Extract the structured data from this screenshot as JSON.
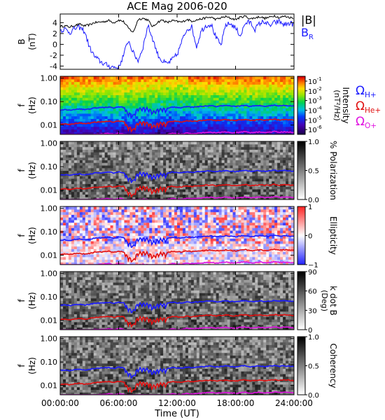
{
  "chart_data": {
    "title": "ACE Mag 2006-020",
    "xlabel": "Time (UT)",
    "x_ticks": [
      "00:00:00",
      "06:00:00",
      "12:00:00",
      "18:00:00",
      "24:00:00"
    ],
    "xlim_hours": [
      0,
      24
    ],
    "panels": [
      {
        "type": "line",
        "ylabel": [
          "B",
          "(nT)"
        ],
        "ylim": [
          -4.6,
          5.6
        ],
        "y_ticks": [
          "4",
          "2",
          "0",
          "-2",
          "-4"
        ],
        "y_tick_values": [
          4,
          2,
          0,
          -2,
          -4
        ],
        "legend": [
          {
            "label": "|B|",
            "color": "#000000"
          },
          {
            "label": "B",
            "sub": "R",
            "color": "#1a1aff"
          }
        ],
        "series": [
          {
            "name": "|B|",
            "color": "#000000",
            "x": [
              0,
              0.5,
              1,
              1.5,
              2,
              2.5,
              3,
              3.5,
              4,
              4.5,
              5,
              5.5,
              6,
              6.5,
              7,
              7.5,
              8,
              8.5,
              9,
              9.5,
              10,
              10.5,
              11,
              11.5,
              12,
              12.5,
              13,
              13.5,
              14,
              14.5,
              15,
              15.5,
              16,
              16.5,
              17,
              17.5,
              18,
              18.5,
              19,
              19.5,
              20,
              20.5,
              21,
              21.5,
              22,
              22.5,
              23,
              23.5,
              24
            ],
            "y": [
              3.3,
              3.4,
              3.2,
              3.5,
              3.7,
              3.4,
              3.6,
              4.0,
              4.1,
              4.2,
              4.4,
              4.0,
              4.5,
              4.2,
              3.0,
              2.2,
              4.6,
              4.8,
              4.5,
              3.2,
              4.1,
              4.5,
              4.0,
              4.4,
              4.2,
              4.1,
              4.6,
              4.3,
              4.5,
              4.7,
              4.9,
              5.0,
              4.6,
              4.9,
              5.1,
              4.8,
              4.6,
              5.0,
              5.2,
              4.7,
              4.9,
              5.1,
              4.8,
              5.0,
              5.3,
              4.9,
              5.2,
              5.0,
              4.8
            ]
          },
          {
            "name": "B_R",
            "color": "#1a1aff",
            "x": [
              0,
              0.5,
              1,
              1.5,
              2,
              2.5,
              3,
              3.5,
              4,
              4.5,
              5,
              5.5,
              6,
              6.5,
              7,
              7.5,
              8,
              8.5,
              9,
              9.5,
              10,
              10.5,
              11,
              11.5,
              12,
              12.5,
              13,
              13.5,
              14,
              14.5,
              15,
              15.5,
              16,
              16.5,
              17,
              17.5,
              18,
              18.5,
              19,
              19.5,
              20,
              20.5,
              21,
              21.5,
              22,
              22.5,
              23,
              23.5,
              24
            ],
            "y": [
              2.6,
              2.8,
              2.2,
              2.9,
              3.1,
              2.4,
              -0.5,
              -2.2,
              -3.0,
              -3.6,
              -4.0,
              -4.2,
              -4.3,
              -2.0,
              0.8,
              -1.6,
              -3.0,
              -0.5,
              3.5,
              1.0,
              -1.8,
              -3.2,
              -3.6,
              -2.8,
              -1.9,
              0.6,
              2.8,
              3.2,
              -0.4,
              2.6,
              3.5,
              3.7,
              1.2,
              -0.2,
              3.6,
              3.8,
              3.0,
              1.6,
              3.9,
              4.1,
              2.8,
              3.9,
              4.2,
              3.4,
              4.0,
              4.2,
              3.6,
              3.9,
              3.7
            ]
          }
        ]
      },
      {
        "type": "heatmap",
        "ylabel": [
          "f",
          "(Hz)"
        ],
        "ylim": [
          0.004,
          1.2
        ],
        "scale": "log",
        "y_ticks": [
          "1.00",
          "0.10",
          "0.01"
        ],
        "y_tick_values": [
          1,
          0.1,
          0.01
        ],
        "colorbar": {
          "label": "Intensity",
          "unit": "(nT²/Hz)",
          "ticks": [
            {
              "b": "10",
              "e": "-1",
              "v": -1
            },
            {
              "b": "10",
              "e": "-2",
              "v": -2
            },
            {
              "b": "10",
              "e": "-3",
              "v": -3
            },
            {
              "b": "10",
              "e": "-4",
              "v": -4
            },
            {
              "b": "10",
              "e": "-5",
              "v": -5
            },
            {
              "b": "10",
              "e": "-6",
              "v": -6
            }
          ],
          "range": [
            -6.5,
            -0.5
          ],
          "palette": "rainbow"
        },
        "legend": [
          {
            "label": "Ω",
            "sub": "H+",
            "color": "#1a1aff"
          },
          {
            "label": "Ω",
            "sub": "He+",
            "color": "#e01010"
          },
          {
            "label": "Ω",
            "sub": "O+",
            "color": "#e010e0"
          }
        ]
      },
      {
        "type": "heatmap",
        "ylabel": [
          "f",
          "(Hz)"
        ],
        "ylim": [
          0.004,
          1.2
        ],
        "scale": "log",
        "y_ticks": [
          "1.00",
          "0.10",
          "0.01"
        ],
        "y_tick_values": [
          1,
          0.1,
          0.01
        ],
        "colorbar": {
          "label": "% Polarization",
          "ticks": [
            {
              "b": "1.0",
              "v": 1
            },
            {
              "b": "0.5",
              "v": 0.5
            },
            {
              "b": "0.0",
              "v": 0
            }
          ],
          "range": [
            0,
            1
          ],
          "palette": "gray"
        }
      },
      {
        "type": "heatmap",
        "ylabel": [
          "f",
          "(Hz)"
        ],
        "ylim": [
          0.004,
          1.2
        ],
        "scale": "log",
        "y_ticks": [
          "1.00",
          "0.10",
          "0.01"
        ],
        "y_tick_values": [
          1,
          0.1,
          0.01
        ],
        "colorbar": {
          "label": "Ellipticity",
          "ticks": [
            {
              "b": "1",
              "v": 1
            },
            {
              "b": "0",
              "v": 0
            },
            {
              "b": "−1",
              "v": -1
            }
          ],
          "range": [
            -1,
            1
          ],
          "palette": "bwr"
        }
      },
      {
        "type": "heatmap",
        "ylabel": [
          "f",
          "(Hz)"
        ],
        "ylim": [
          0.004,
          1.2
        ],
        "scale": "log",
        "y_ticks": [
          "1.00",
          "0.10",
          "0.01"
        ],
        "y_tick_values": [
          1,
          0.1,
          0.01
        ],
        "colorbar": {
          "label": "k dot B",
          "unit": "(Deg)",
          "ticks": [
            {
              "b": "90",
              "v": 90
            },
            {
              "b": "60",
              "v": 60
            },
            {
              "b": "30",
              "v": 30
            },
            {
              "b": "0",
              "v": 0
            }
          ],
          "range": [
            0,
            90
          ],
          "palette": "gray"
        }
      },
      {
        "type": "heatmap",
        "ylabel": [
          "f",
          "(Hz)"
        ],
        "ylim": [
          0.004,
          1.2
        ],
        "scale": "log",
        "y_ticks": [
          "1.00",
          "0.10",
          "0.01"
        ],
        "y_tick_values": [
          1,
          0.1,
          0.01
        ],
        "colorbar": {
          "label": "Coherency",
          "ticks": [
            {
              "b": "1.0",
              "v": 1
            },
            {
              "b": "0.5",
              "v": 0.5
            },
            {
              "b": "0.0",
              "v": 0
            }
          ],
          "range": [
            0,
            1
          ],
          "palette": "gray"
        }
      }
    ],
    "gyrofrequency_lines": [
      {
        "name": "Ω_H+",
        "color": "#1a1aff",
        "base_hz": 0.06
      },
      {
        "name": "Ω_He+",
        "color": "#e01010",
        "base_hz": 0.015
      },
      {
        "name": "Ω_O+",
        "color": "#e010e0",
        "base_hz": 0.0045
      }
    ]
  }
}
